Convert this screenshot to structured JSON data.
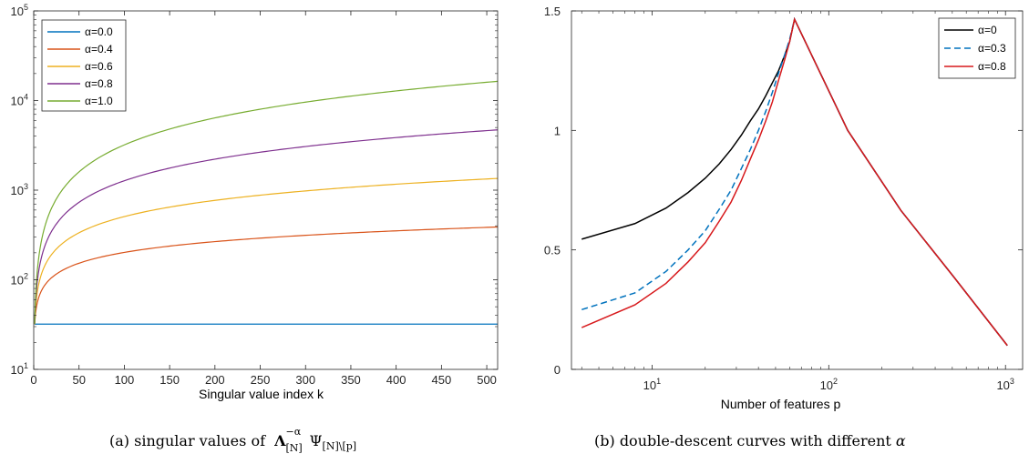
{
  "chart_data": [
    {
      "type": "line",
      "title": "",
      "xlabel": "Singular value index k",
      "ylabel": "",
      "xlim": [
        0,
        512
      ],
      "ylim": [
        10,
        100000
      ],
      "y_scale": "log",
      "x_ticks": [
        0,
        50,
        100,
        150,
        200,
        250,
        300,
        350,
        400,
        450,
        500
      ],
      "x_tick_labels": [
        "0",
        "50",
        "100",
        "150",
        "200",
        "250",
        "300",
        "350",
        "400",
        "450",
        "500"
      ],
      "y_ticks": [
        10,
        100,
        1000,
        10000,
        100000
      ],
      "y_tick_base": [
        "10",
        "10",
        "10",
        "10",
        "10"
      ],
      "y_tick_exp": [
        "1",
        "2",
        "3",
        "4",
        "5"
      ],
      "legend_position": "top-left",
      "series": [
        {
          "name": "α=0.0",
          "color": "#0072BD",
          "alpha": 0.0,
          "base": 32
        },
        {
          "name": "α=0.4",
          "color": "#D95319",
          "alpha": 0.4,
          "base": 32
        },
        {
          "name": "α=0.6",
          "color": "#EDB120",
          "alpha": 0.6,
          "base": 32
        },
        {
          "name": "α=0.8",
          "color": "#7E2F8E",
          "alpha": 0.8,
          "base": 32
        },
        {
          "name": "α=1.0",
          "color": "#77AC30",
          "alpha": 1.0,
          "base": 32
        }
      ],
      "caption": {
        "prefix": "(a) singular values of",
        "main": "Λ",
        "sup": "−α",
        "sub": "[N]",
        "psi": "Ψ",
        "psi_sub": "[N]\\[p]"
      }
    },
    {
      "type": "line",
      "title": "",
      "xlabel": "Number of features p",
      "ylabel": "",
      "x_scale": "log",
      "xlim": [
        3.5,
        1250
      ],
      "ylim": [
        0,
        1.5
      ],
      "x_ticks": [
        10,
        100,
        1000
      ],
      "x_tick_base": [
        "10",
        "10",
        "10"
      ],
      "x_tick_exp": [
        "1",
        "2",
        "3"
      ],
      "y_ticks": [
        0,
        0.5,
        1,
        1.5
      ],
      "y_tick_labels": [
        "0",
        "0.5",
        "1",
        "1.5"
      ],
      "legend_position": "top-right",
      "series": [
        {
          "name": "α=0",
          "color": "#000000",
          "dash": "",
          "x": [
            4,
            8,
            12,
            16,
            20,
            24,
            28,
            32,
            36,
            40,
            44,
            48,
            52,
            56,
            60,
            64,
            128,
            256,
            512,
            1024
          ],
          "y": [
            0.545,
            0.61,
            0.675,
            0.74,
            0.8,
            0.86,
            0.92,
            0.98,
            1.04,
            1.09,
            1.145,
            1.2,
            1.25,
            1.31,
            1.37,
            1.465,
            1.0,
            0.665,
            0.385,
            0.1
          ]
        },
        {
          "name": "α=0.3",
          "color": "#0072BD",
          "dash": "7,4",
          "x": [
            4,
            8,
            12,
            16,
            20,
            24,
            28,
            32,
            36,
            40,
            44,
            48,
            52,
            56,
            60,
            64,
            128,
            256,
            512,
            1024
          ],
          "y": [
            0.25,
            0.32,
            0.41,
            0.5,
            0.58,
            0.67,
            0.75,
            0.84,
            0.92,
            1.0,
            1.08,
            1.16,
            1.24,
            1.31,
            1.38,
            1.465,
            1.0,
            0.665,
            0.385,
            0.1
          ]
        },
        {
          "name": "α=0.8",
          "color": "#D7191C",
          "dash": "",
          "x": [
            4,
            8,
            12,
            16,
            20,
            24,
            28,
            32,
            36,
            40,
            44,
            48,
            52,
            56,
            60,
            64,
            128,
            256,
            512,
            1024
          ],
          "y": [
            0.175,
            0.27,
            0.36,
            0.45,
            0.53,
            0.62,
            0.7,
            0.79,
            0.88,
            0.96,
            1.04,
            1.12,
            1.21,
            1.29,
            1.37,
            1.465,
            1.0,
            0.665,
            0.385,
            0.1
          ]
        }
      ],
      "caption": {
        "text": "(b) double-descent curves with different",
        "symbol": "α"
      }
    }
  ]
}
